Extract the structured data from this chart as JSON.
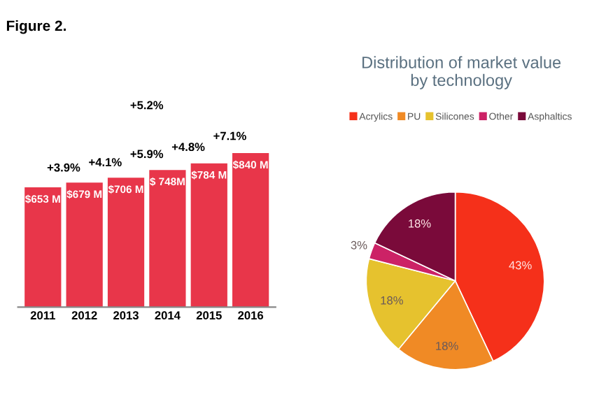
{
  "chart_data": [
    {
      "type": "bar",
      "title": "Figure 2.",
      "categories": [
        "2011",
        "2012",
        "2013",
        "2014",
        "2015",
        "2016"
      ],
      "values": [
        653,
        679,
        706,
        748,
        784,
        840
      ],
      "color": "#e8364a",
      "value_labels": [
        "$653 M",
        "$679 M",
        "$706 M",
        "$ 748M",
        "$784 M",
        "$840 M"
      ],
      "annotations": [
        "+3.9%",
        "+4.1%",
        "+5.9%",
        "+4.8%",
        "+7.1%",
        "+5.2%"
      ],
      "grid": false
    },
    {
      "type": "pie",
      "title": "Distribution of market value\nby technology",
      "categories": [
        "Acrylics",
        "PU",
        "Silicones",
        "Other",
        "Asphaltics"
      ],
      "values": [
        43,
        18,
        18,
        3,
        18
      ],
      "colors": [
        "#f5301a",
        "#f08a25",
        "#e6c22e",
        "#cc2266",
        "#7a0a3a"
      ],
      "value_labels": [
        "43%",
        "18%",
        "18%",
        "3%",
        "18%"
      ],
      "legend": "top"
    }
  ]
}
